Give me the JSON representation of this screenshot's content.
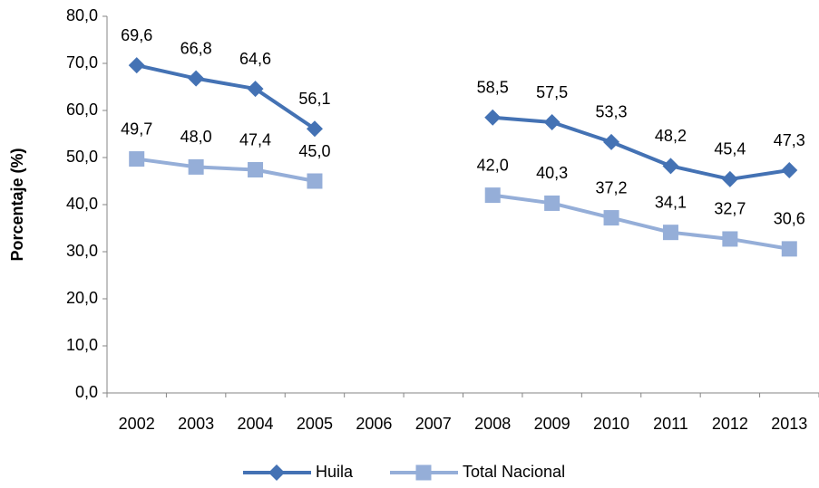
{
  "chart_data": {
    "type": "line",
    "y_label": "Porcentaje (%)",
    "categories": [
      "2002",
      "2003",
      "2004",
      "2005",
      "2006",
      "2007",
      "2008",
      "2009",
      "2010",
      "2011",
      "2012",
      "2013"
    ],
    "series": [
      {
        "name": "Huila",
        "color": "#4472b4",
        "marker": "diamond",
        "values": [
          69.6,
          66.8,
          64.6,
          56.1,
          null,
          null,
          58.5,
          57.5,
          53.3,
          48.2,
          45.4,
          47.3
        ],
        "value_labels": [
          "69,6",
          "66,8",
          "64,6",
          "56,1",
          null,
          null,
          "58,5",
          "57,5",
          "53,3",
          "48,2",
          "45,4",
          "47,3"
        ]
      },
      {
        "name": "Total Nacional",
        "color": "#95aed8",
        "marker": "square",
        "values": [
          49.7,
          48.0,
          47.4,
          45.0,
          null,
          null,
          42.0,
          40.3,
          37.2,
          34.1,
          32.7,
          30.6
        ],
        "value_labels": [
          "49,7",
          "48,0",
          "47,4",
          "45,0",
          null,
          null,
          "42,0",
          "40,3",
          "37,2",
          "34,1",
          "32,7",
          "30,6"
        ]
      }
    ],
    "ylim": [
      0,
      80
    ],
    "yticks": [
      {
        "value": 0,
        "label": "0,0"
      },
      {
        "value": 10,
        "label": "10,0"
      },
      {
        "value": 20,
        "label": "20,0"
      },
      {
        "value": 30,
        "label": "30,0"
      },
      {
        "value": 40,
        "label": "40,0"
      },
      {
        "value": 50,
        "label": "50,0"
      },
      {
        "value": 60,
        "label": "60,0"
      },
      {
        "value": 70,
        "label": "70,0"
      },
      {
        "value": 80,
        "label": "80,0"
      }
    ],
    "grid": false,
    "legend": "bottom"
  }
}
